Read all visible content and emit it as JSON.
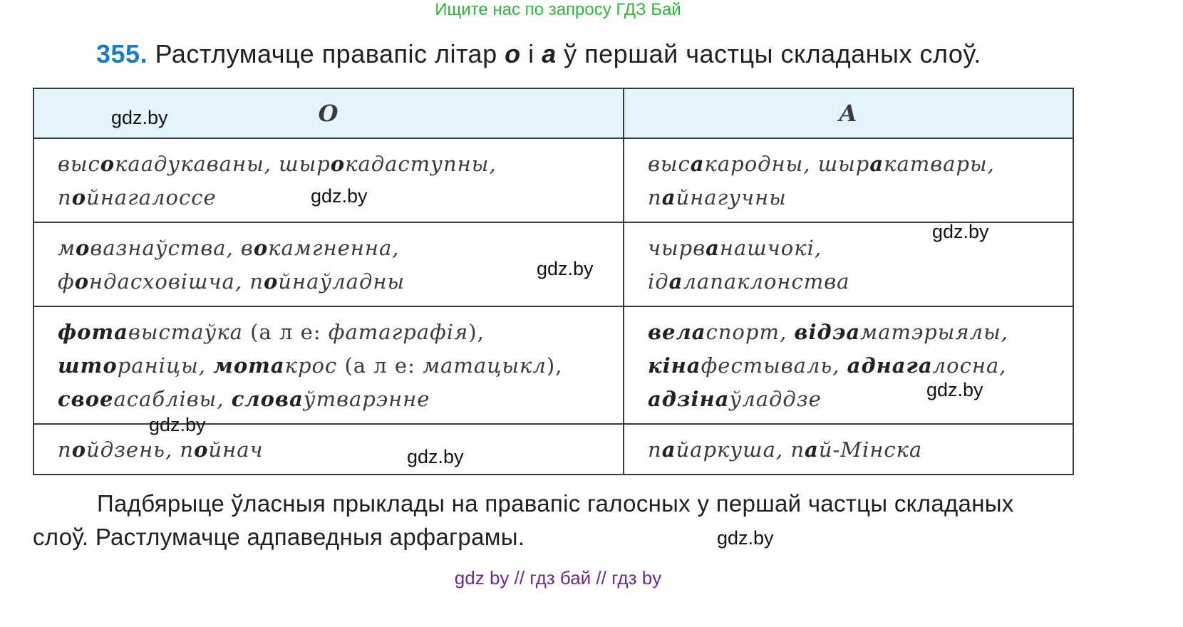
{
  "banner": "Ищите нас по запросу ГДЗ Бай",
  "task": {
    "number": "355.",
    "text_before": " Растлумачце правапіс літар ",
    "letter_o": "о",
    "text_mid": " і ",
    "letter_a": "а",
    "text_after": " ў першай частцы  складаных слоў."
  },
  "table": {
    "headers": [
      "О",
      "А"
    ],
    "rows": [
      [
        [
          [
            [
              "выс",
              "i"
            ],
            [
              "о",
              "b"
            ],
            [
              "каадукаваны, шыр",
              "i"
            ],
            [
              "о",
              "b"
            ],
            [
              "кадаступны,",
              "i"
            ]
          ],
          [
            [
              "п",
              "i"
            ],
            [
              "о",
              "b"
            ],
            [
              "йнагалоссе",
              "i"
            ]
          ]
        ],
        [
          [
            [
              "выс",
              "i"
            ],
            [
              "а",
              "b"
            ],
            [
              "кародны, шыр",
              "i"
            ],
            [
              "а",
              "b"
            ],
            [
              "катвары,",
              "i"
            ]
          ],
          [
            [
              "п",
              "i"
            ],
            [
              "а",
              "b"
            ],
            [
              "йнагучны",
              "i"
            ]
          ]
        ]
      ],
      [
        [
          [
            [
              "м",
              "i"
            ],
            [
              "о",
              "b"
            ],
            [
              "вазнаўства, в",
              "i"
            ],
            [
              "о",
              "b"
            ],
            [
              "камгненна,",
              "i"
            ]
          ],
          [
            [
              "ф",
              "i"
            ],
            [
              "о",
              "b"
            ],
            [
              "ндасховішча, п",
              "i"
            ],
            [
              "о",
              "b"
            ],
            [
              "йнаўладны",
              "i"
            ]
          ]
        ],
        [
          [
            [
              "чырв",
              "i"
            ],
            [
              "а",
              "b"
            ],
            [
              "нашчокі,",
              "i"
            ]
          ],
          [
            [
              "ід",
              "i"
            ],
            [
              "а",
              "b"
            ],
            [
              "лапаклонства",
              "i"
            ]
          ]
        ]
      ],
      [
        [
          [
            [
              "фота",
              "b"
            ],
            [
              "выстаўка",
              "i"
            ],
            [
              " (а л е: ",
              "n"
            ],
            [
              "фатаграфія",
              "i"
            ],
            [
              "),",
              "n"
            ]
          ],
          [
            [
              "што",
              "b"
            ],
            [
              "раніцы, ",
              "i"
            ],
            [
              "мота",
              "b"
            ],
            [
              "крос",
              "i"
            ],
            [
              " (а л е: ",
              "n"
            ],
            [
              "матацыкл",
              "i"
            ],
            [
              "),",
              "n"
            ]
          ],
          [
            [
              "свое",
              "b"
            ],
            [
              "асаблівы, ",
              "i"
            ],
            [
              "слова",
              "b"
            ],
            [
              "ўтварэнне",
              "i"
            ]
          ]
        ],
        [
          [
            [
              "вела",
              "b"
            ],
            [
              "спорт, ",
              "i"
            ],
            [
              "відэа",
              "b"
            ],
            [
              "матэрыялы,",
              "i"
            ]
          ],
          [
            [
              "кіна",
              "b"
            ],
            [
              "фестываль, ",
              "i"
            ],
            [
              "аднага",
              "b"
            ],
            [
              "лосна,",
              "i"
            ]
          ],
          [
            [
              "адзіна",
              "b"
            ],
            [
              "ўладдзе",
              "i"
            ]
          ]
        ]
      ],
      [
        [
          [
            [
              "п",
              "i"
            ],
            [
              "о",
              "b"
            ],
            [
              "йдзень, п",
              "i"
            ],
            [
              "о",
              "b"
            ],
            [
              "йнач",
              "i"
            ]
          ]
        ],
        [
          [
            [
              "п",
              "i"
            ],
            [
              "а",
              "b"
            ],
            [
              "йаркуша, п",
              "i"
            ],
            [
              "а",
              "b"
            ],
            [
              "й-Мінска",
              "i"
            ]
          ]
        ]
      ]
    ]
  },
  "follow_text": "Падбярыце ўласныя прыклады на правапіс галосных у першай частцы скла­даных слоў. Растлумачце адпаведныя арфаграмы.",
  "watermark": "gdz.by",
  "footer": "gdz by  //  гдз бай  //  гдз by"
}
